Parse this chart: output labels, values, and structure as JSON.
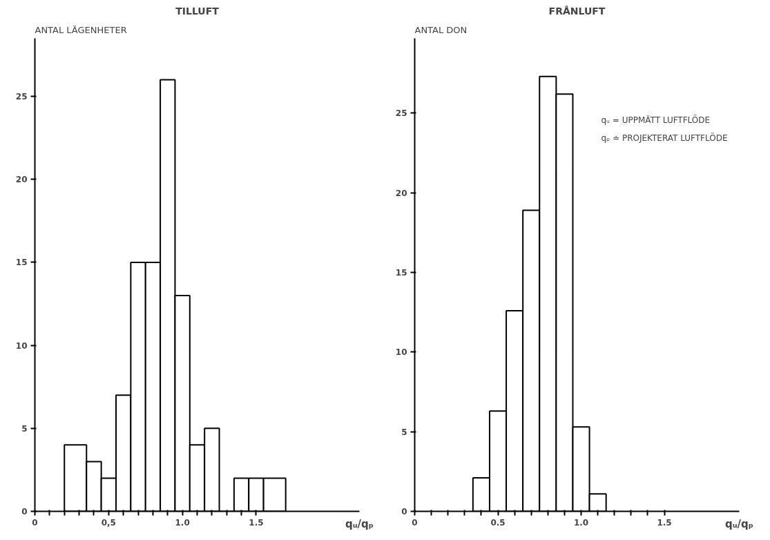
{
  "chart_data": [
    {
      "type": "histogram",
      "title": "TILLUFT",
      "ylabel": "ANTAL LÄGENHETER",
      "xlabel": "qᵤ/qₚ",
      "color": "#000000",
      "bins": [
        0.2,
        0.35,
        0.45,
        0.55,
        0.65,
        0.75,
        0.85,
        0.95,
        1.05,
        1.15,
        1.25,
        1.35,
        1.45,
        1.55,
        1.7
      ],
      "values": [
        4,
        3,
        2,
        7,
        15,
        15,
        26,
        13,
        4,
        5,
        0,
        2,
        2,
        2
      ],
      "xlim": [
        0,
        2.2
      ],
      "ylim": [
        0,
        28.5
      ],
      "xticks": [
        0,
        {
          "value": 0.1,
          "label": null
        },
        {
          "value": 0.2,
          "label": null
        },
        {
          "value": 0.3,
          "label": null
        },
        {
          "value": 0.4,
          "label": null
        },
        {
          "value": 0.5,
          "label": "0,5"
        },
        {
          "value": 0.6,
          "label": null
        },
        {
          "value": 0.7,
          "label": null
        },
        {
          "value": 0.8,
          "label": null
        },
        {
          "value": 0.9,
          "label": null
        },
        {
          "value": 1.0,
          "label": "1.0"
        },
        {
          "value": 1.1,
          "label": null
        },
        {
          "value": 1.2,
          "label": null
        },
        {
          "value": 1.3,
          "label": null
        },
        {
          "value": 1.4,
          "label": null
        },
        {
          "value": 1.5,
          "label": "1.5"
        }
      ],
      "yticks": [
        0,
        5,
        10,
        15,
        20,
        25
      ]
    },
    {
      "type": "histogram",
      "title": "FRÅNLUFT",
      "ylabel": "ANTAL DON",
      "xlabel": "qᵤ/qₚ",
      "color": "#000000",
      "bins": [
        0.35,
        0.45,
        0.55,
        0.65,
        0.75,
        0.85,
        0.95,
        1.05,
        1.15
      ],
      "values": [
        2.1,
        6.3,
        12.6,
        18.9,
        27.3,
        26.2,
        5.3,
        1.1
      ],
      "xlim": [
        0,
        1.95
      ],
      "ylim": [
        0,
        29.7
      ],
      "xticks": [
        0,
        {
          "value": 0.1,
          "label": null
        },
        {
          "value": 0.2,
          "label": null
        },
        {
          "value": 0.3,
          "label": null
        },
        {
          "value": 0.4,
          "label": null
        },
        {
          "value": 0.5,
          "label": "0.5"
        },
        {
          "value": 0.6,
          "label": null
        },
        {
          "value": 0.7,
          "label": null
        },
        {
          "value": 0.8,
          "label": null
        },
        {
          "value": 0.9,
          "label": null
        },
        {
          "value": 1.0,
          "label": "1.0"
        },
        {
          "value": 1.1,
          "label": null
        },
        {
          "value": 1.2,
          "label": null
        },
        {
          "value": 1.3,
          "label": null
        },
        {
          "value": 1.4,
          "label": null
        },
        {
          "value": 1.5,
          "label": "1.5"
        }
      ],
      "yticks": [
        0,
        5,
        10,
        15,
        20,
        25
      ],
      "annotations": [
        "qᵤ = UPPMÄTT LUFTFLÖDE",
        "qₚ ≐ PROJEKTERAT LUFTFLÖDE"
      ]
    }
  ]
}
